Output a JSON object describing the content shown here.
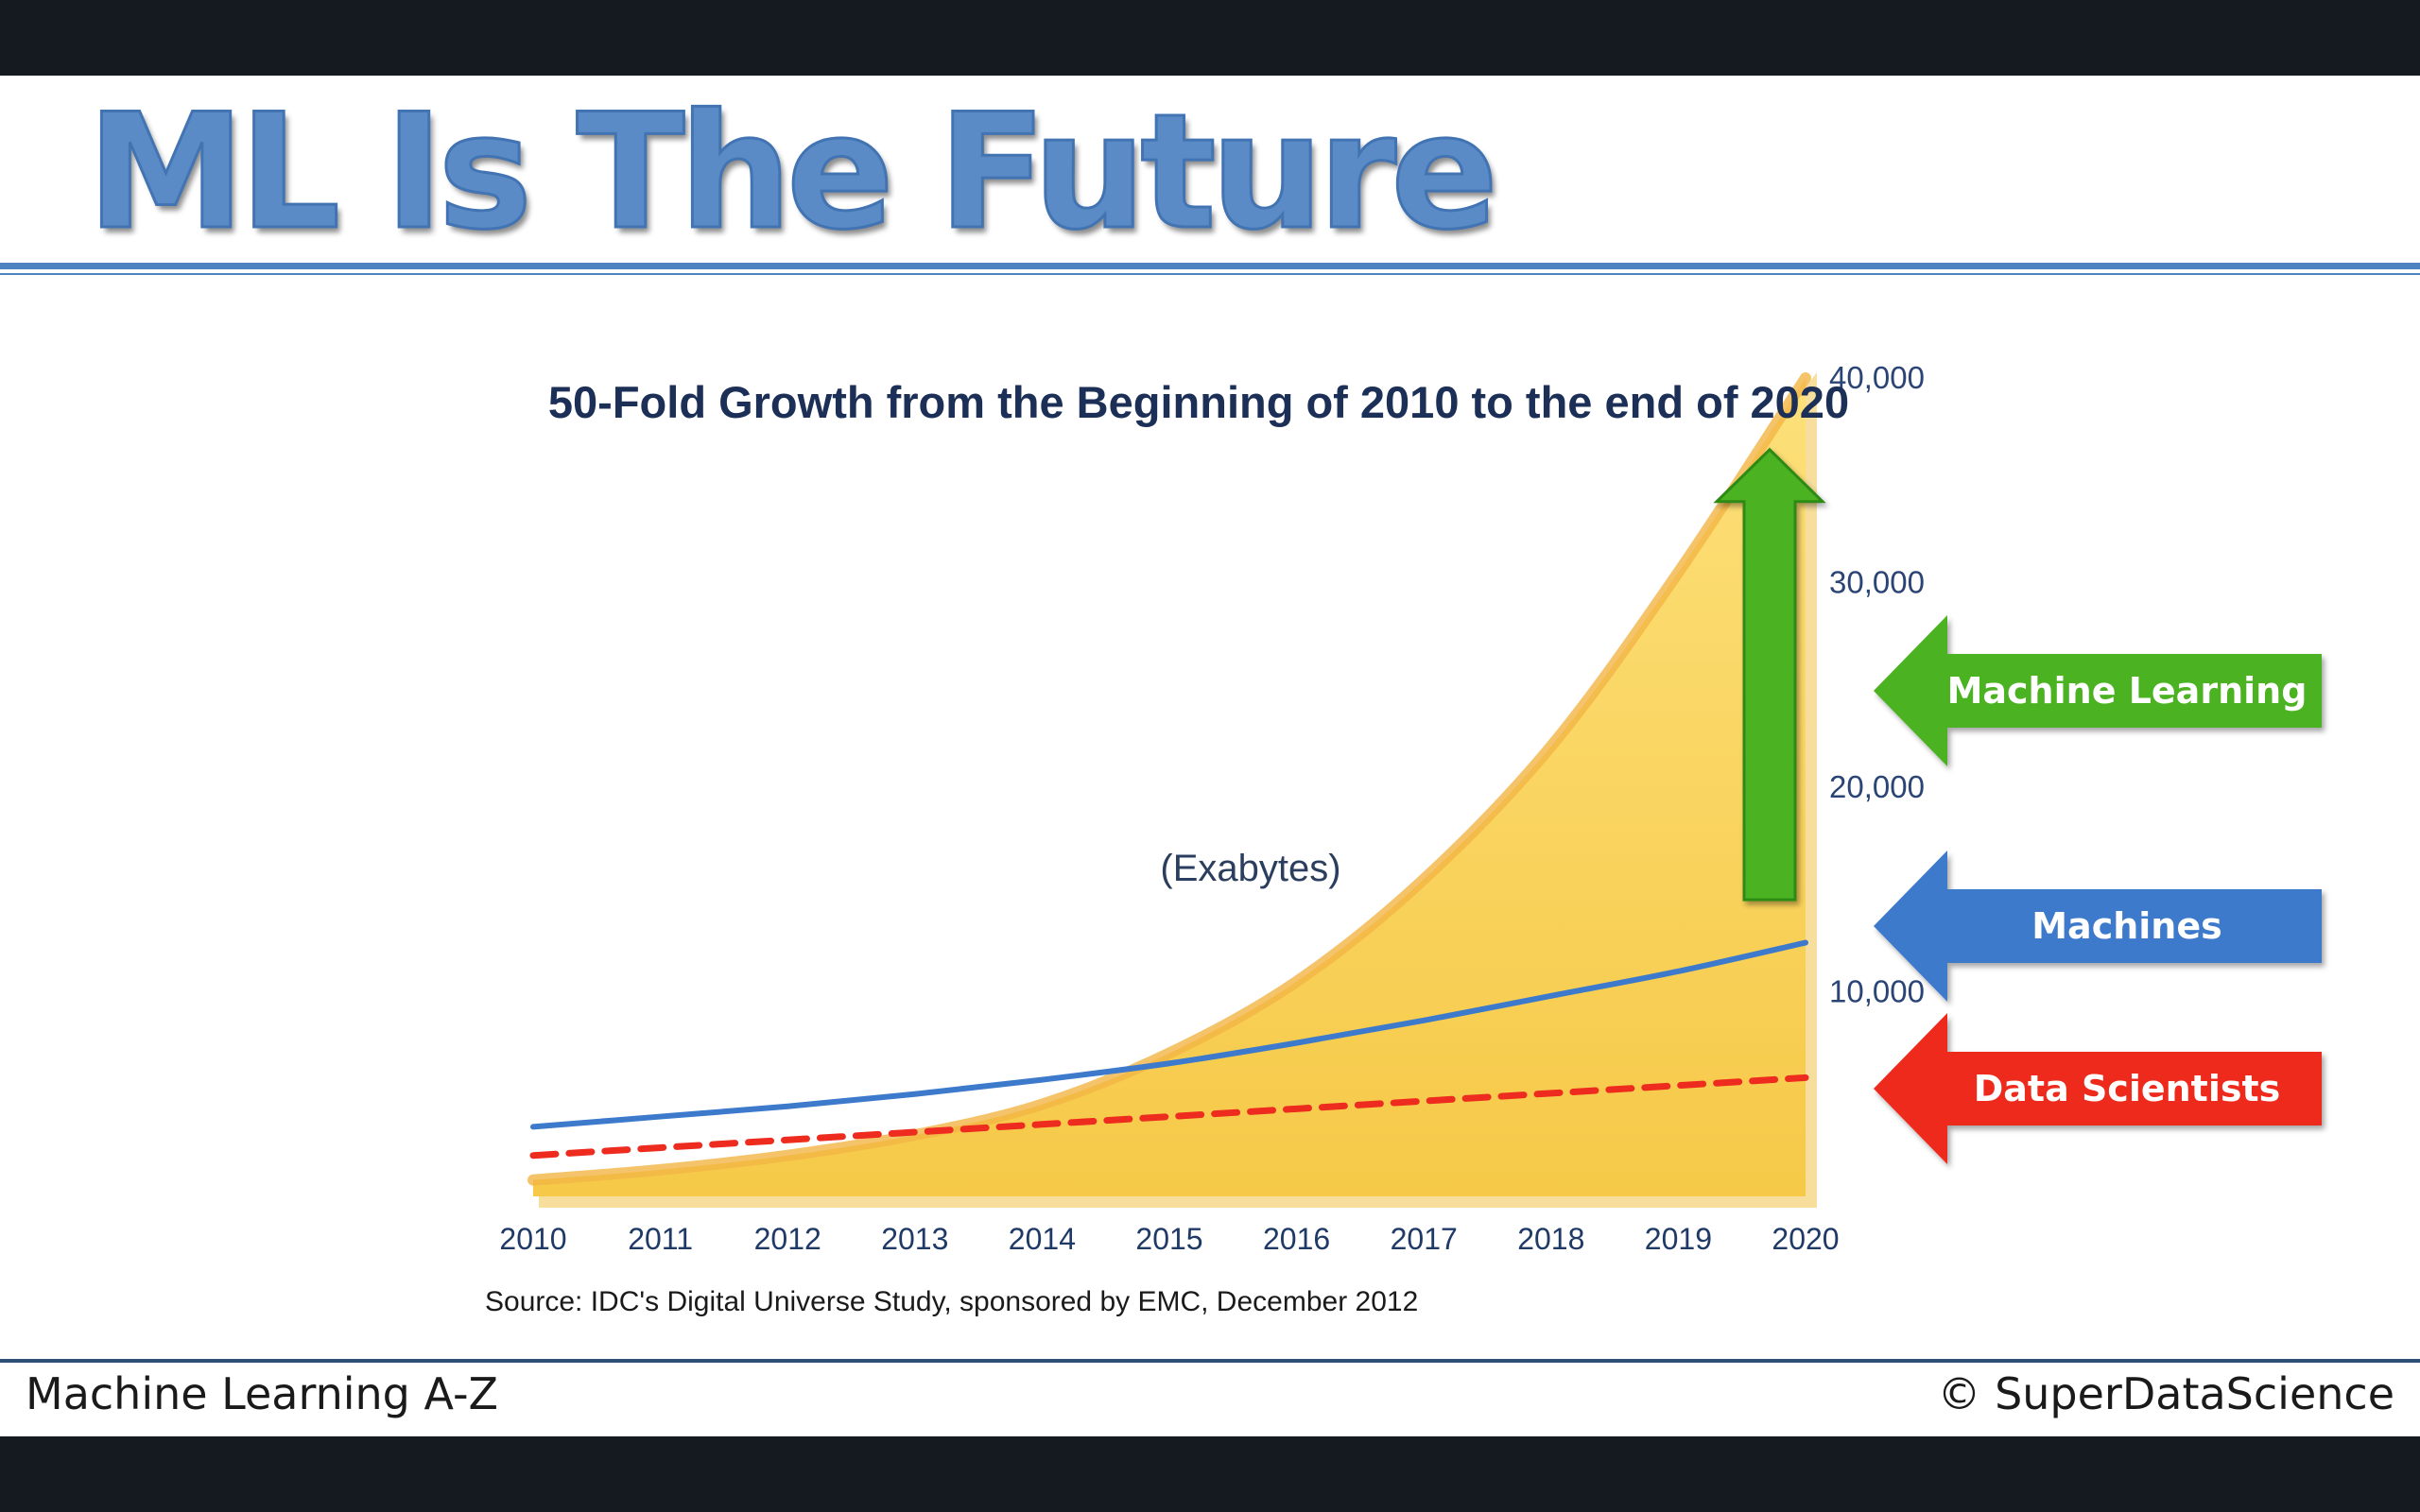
{
  "slide": {
    "title": "ML Is The Future",
    "footer_left": "Machine Learning A-Z",
    "footer_right": "© SuperDataScience"
  },
  "chart_data": {
    "type": "area",
    "title": "50-Fold Growth from the Beginning of 2010 to the end of 2020",
    "annotation": "(Exabytes)",
    "source": "Source: IDC's Digital Universe Study, sponsored by EMC, December 2012",
    "x": [
      2010,
      2011,
      2012,
      2013,
      2014,
      2015,
      2016,
      2017,
      2018,
      2019,
      2020
    ],
    "y_ticks": [
      10000,
      20000,
      30000,
      40000
    ],
    "y_tick_labels": [
      "10,000",
      "20,000",
      "30,000",
      "40,000"
    ],
    "ylim": [
      0,
      40000
    ],
    "y_axis_side": "right",
    "grid": false,
    "area_values": [
      800,
      1300,
      2000,
      3000,
      4500,
      7000,
      10500,
      15500,
      22000,
      30500,
      40000
    ],
    "area_color": "#f9d35c",
    "lines": [
      {
        "values": [
          3400,
          3900,
          4400,
          5000,
          5700,
          6500,
          7500,
          8600,
          9800,
          11000,
          12400
        ],
        "color": "#3d7acc",
        "dash": false
      },
      {
        "values": [
          2000,
          2380,
          2760,
          3140,
          3520,
          3900,
          4280,
          4660,
          5040,
          5420,
          5800
        ],
        "color": "#ee2b1f",
        "dash": true
      }
    ],
    "growth_arrow": {
      "from": 14500,
      "to": 36500,
      "color": "#4cb320"
    },
    "legend_arrows": [
      {
        "label": "Machine Learning",
        "color": "#4cb320"
      },
      {
        "label": "Machines",
        "color": "#3d7acc"
      },
      {
        "label": "Data Scientists",
        "color": "#ee2b1f"
      }
    ]
  }
}
